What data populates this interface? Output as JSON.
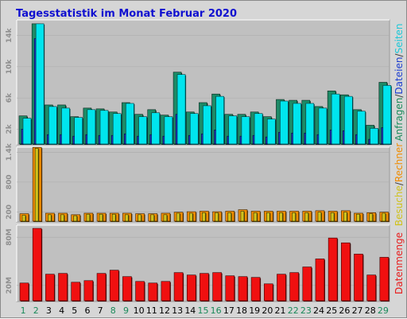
{
  "chart_data": {
    "type": "bar",
    "title": "Tagesstatistik im Monat Februar 2020",
    "categories": [
      "1",
      "2",
      "3",
      "4",
      "5",
      "6",
      "7",
      "8",
      "9",
      "10",
      "11",
      "12",
      "13",
      "14",
      "15",
      "16",
      "17",
      "18",
      "19",
      "20",
      "21",
      "22",
      "23",
      "24",
      "25",
      "26",
      "27",
      "28",
      "29"
    ],
    "weekend_days": [
      "1",
      "2",
      "8",
      "9",
      "15",
      "16",
      "22",
      "23",
      "29"
    ],
    "panels": [
      {
        "id": "requests",
        "ylim": [
          0,
          16000
        ],
        "yticks": [
          2000,
          6000,
          10000,
          14000
        ],
        "ytick_labels": [
          "2k",
          "6k",
          "10k",
          "14k"
        ],
        "side_label": [
          {
            "text": "Anfragen",
            "color": "#1a8a5a"
          },
          {
            "text": "/",
            "color": "#3a3a3a"
          },
          {
            "text": "Dateien",
            "color": "#1d3fd0"
          },
          {
            "text": "/",
            "color": "#3a3a3a"
          },
          {
            "text": "Seiten",
            "color": "#1ec8d8"
          }
        ],
        "series": [
          {
            "name": "Anfragen",
            "color": "#1d8a66",
            "values": [
              3600,
              15400,
              5000,
              5000,
              3500,
              4600,
              4500,
              4100,
              5300,
              3800,
              4400,
              3700,
              9200,
              4100,
              5300,
              6400,
              3800,
              3800,
              4100,
              3500,
              5700,
              5600,
              5600,
              4800,
              6800,
              6300,
              4400,
              2400,
              7900
            ]
          },
          {
            "name": "Dateien",
            "color": "#1c2fc4",
            "values": [
              1900,
              13500,
              1200,
              1200,
              1000,
              1200,
              1100,
              1100,
              1300,
              1000,
              1200,
              1000,
              3800,
              1100,
              1300,
              1800,
              1000,
              1000,
              1100,
              900,
              1500,
              1400,
              1400,
              1200,
              1800,
              1700,
              1200,
              600,
              2100
            ]
          },
          {
            "name": "Seiten",
            "color": "#00e5ee",
            "values": [
              3300,
              15400,
              4800,
              4600,
              3400,
              4400,
              4300,
              3900,
              5200,
              3500,
              4000,
              3500,
              8900,
              3900,
              4900,
              6100,
              3600,
              3500,
              3900,
              3200,
              5500,
              5200,
              5200,
              4600,
              6400,
              6100,
              4200,
              2000,
              7500
            ]
          }
        ]
      },
      {
        "id": "visits",
        "ylim": [
          0,
          1500
        ],
        "yticks": [
          200,
          800,
          1400
        ],
        "ytick_labels": [
          "200",
          "800",
          "1.4k"
        ],
        "side_label": [
          {
            "text": "Besuche",
            "color": "#d0c21c"
          },
          {
            "text": "/",
            "color": "#3a3a3a"
          },
          {
            "text": "Rechner",
            "color": "#f08c00"
          }
        ],
        "series": [
          {
            "name": "Rechner",
            "color": "#f08c00",
            "values": [
              150,
              1480,
              160,
              160,
              130,
              160,
              160,
              160,
              160,
              150,
              150,
              160,
              180,
              190,
              200,
              190,
              200,
              230,
              200,
              200,
              200,
              200,
              200,
              210,
              200,
              210,
              160,
              170,
              180
            ]
          },
          {
            "name": "Besuche",
            "color": "#d0c21c",
            "values": [
              120,
              1460,
              130,
              130,
              110,
              140,
              140,
              140,
              130,
              130,
              130,
              130,
              160,
              160,
              170,
              170,
              170,
              200,
              170,
              170,
              170,
              170,
              170,
              180,
              170,
              180,
              140,
              150,
              160
            ]
          }
        ]
      },
      {
        "id": "volume",
        "ylim": [
          0,
          95
        ],
        "yticks": [
          20,
          80
        ],
        "ytick_labels": [
          "20M",
          "80M"
        ],
        "side_label": [
          {
            "text": "Datenmenge",
            "color": "#e81c1c"
          }
        ],
        "series": [
          {
            "name": "Datenmenge",
            "color": "#f01010",
            "values": [
              22,
              90,
              33,
              34,
              23,
              25,
              34,
              38,
              30,
              24,
              22,
              24,
              35,
              32,
              34,
              35,
              31,
              30,
              29,
              21,
              33,
              35,
              42,
              52,
              78,
              72,
              58,
              32,
              54
            ]
          }
        ]
      }
    ],
    "colors": {
      "background": "#d6d6d6",
      "plot": "#c0c0c0",
      "title": "#1010d0",
      "weekday": "#000000",
      "weekend": "#1a8a5a"
    }
  }
}
